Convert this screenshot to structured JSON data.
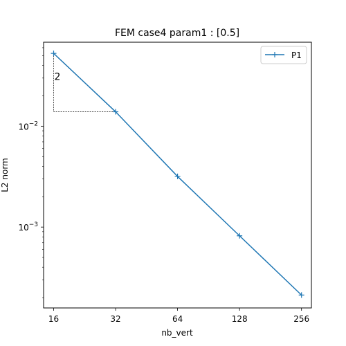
{
  "chart_data": {
    "type": "line",
    "title": "FEM case4 param1 : [0.5]",
    "xlabel": "nb_vert",
    "ylabel": "L2 norm",
    "x_scale": "log2",
    "y_scale": "log10",
    "xlim": [
      14.3,
      286
    ],
    "ylim": [
      0.000158,
      0.068
    ],
    "x_ticks": [
      16,
      32,
      64,
      128,
      256
    ],
    "x_tick_labels": [
      "16",
      "32",
      "64",
      "128",
      "256"
    ],
    "y_ticks": [
      0.01,
      0.001
    ],
    "y_tick_labels": [
      {
        "base": "10",
        "exp": "−2"
      },
      {
        "base": "10",
        "exp": "−3"
      }
    ],
    "grid": false,
    "legend_position": "top-right",
    "series": [
      {
        "name": "P1",
        "color": "#1f77b4",
        "marker": "plus",
        "x": [
          16,
          32,
          64,
          128,
          256
        ],
        "y": [
          0.0527,
          0.0139,
          0.00318,
          0.00082,
          0.000212
        ]
      }
    ],
    "slope_triangle": {
      "label": "2",
      "x": [
        16,
        32
      ],
      "y": [
        0.0527,
        0.0139
      ]
    }
  }
}
